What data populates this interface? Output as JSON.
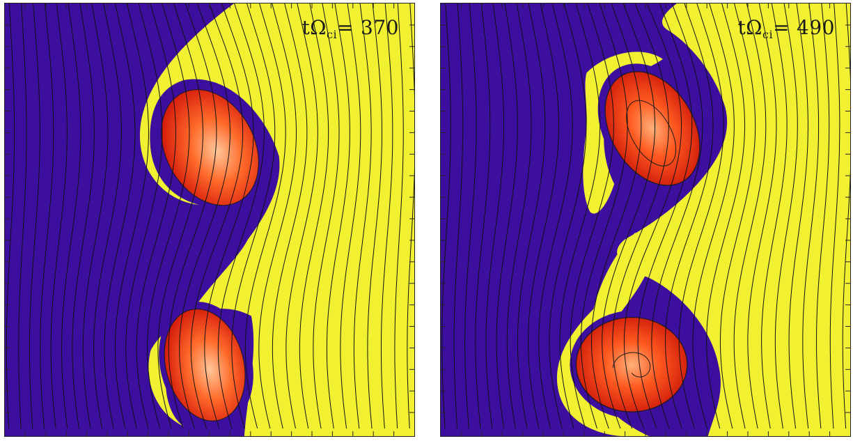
{
  "panels": [
    {
      "time_prefix": "tΩ",
      "time_subscript": "ci",
      "time_equals": "=",
      "time_value": "370"
    },
    {
      "time_prefix": "tΩ",
      "time_subscript": "ci",
      "time_equals": "=",
      "time_value": "490"
    }
  ],
  "colors": {
    "background_plasma": "#3d0f9e",
    "sheet_plasma": "#f1f131",
    "vortex_core_outer": "#e01b10",
    "vortex_core_inner": "#ffb07a",
    "field_lines": "#111111"
  }
}
